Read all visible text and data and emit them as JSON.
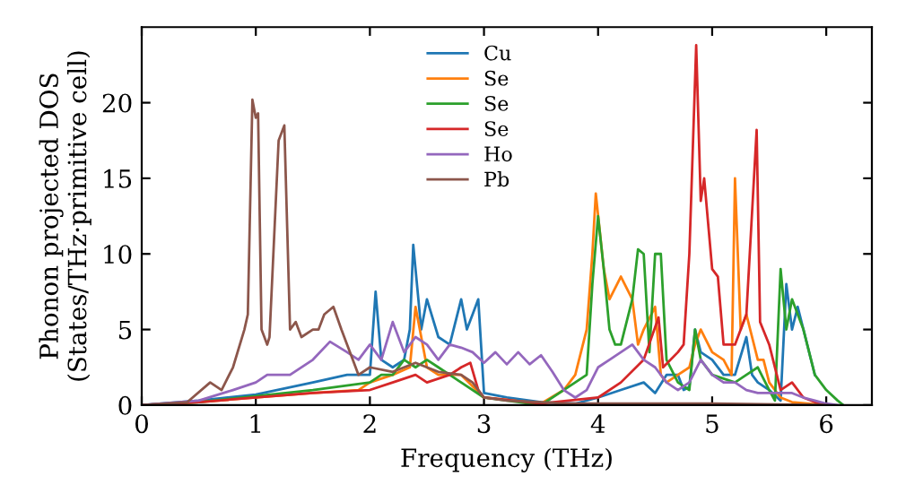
{
  "chart_data": {
    "type": "line",
    "xlabel": "Frequency (THz)",
    "ylabel": "Phonon projected DOS\n(States/THz·primitive cell)",
    "xlim": [
      0,
      6.4
    ],
    "ylim": [
      0,
      25
    ],
    "xticks": [
      0,
      1,
      2,
      3,
      4,
      5,
      6
    ],
    "yticks": [
      0,
      5,
      10,
      15,
      20
    ],
    "legend": "top",
    "grid": false,
    "marker": "none",
    "line_style": "solid",
    "series": [
      {
        "name": "Cu",
        "color": "#1f77b4",
        "x": [
          0,
          0.5,
          1.0,
          1.5,
          1.8,
          2.0,
          2.05,
          2.1,
          2.2,
          2.3,
          2.35,
          2.38,
          2.45,
          2.5,
          2.6,
          2.7,
          2.8,
          2.85,
          2.9,
          2.95,
          3.0,
          3.2,
          3.5,
          3.8,
          4.0,
          4.2,
          4.4,
          4.5,
          4.6,
          4.7,
          4.75,
          4.8,
          4.85,
          4.9,
          5.0,
          5.1,
          5.2,
          5.3,
          5.35,
          5.4,
          5.5,
          5.6,
          5.65,
          5.7,
          5.75,
          5.8,
          5.9
        ],
        "values": [
          0,
          0.3,
          0.7,
          1.5,
          2,
          2,
          7.5,
          3,
          2.5,
          3,
          5,
          10.6,
          5,
          7,
          4.5,
          4,
          7,
          5,
          6,
          7,
          0.8,
          0.5,
          0.2,
          0.1,
          0.5,
          1,
          1.5,
          0.8,
          2,
          2,
          1,
          1.2,
          5,
          3.5,
          3,
          2,
          2,
          4.5,
          2,
          1.5,
          1,
          0.3,
          8,
          5,
          6.5,
          5,
          2
        ]
      },
      {
        "name": "Se",
        "color": "#ff7f0e",
        "x": [
          0,
          0.5,
          1.0,
          1.5,
          1.9,
          2.0,
          2.2,
          2.35,
          2.4,
          2.5,
          2.6,
          2.8,
          3.0,
          3.5,
          3.7,
          3.8,
          3.9,
          3.95,
          3.98,
          4.05,
          4.1,
          4.2,
          4.3,
          4.35,
          4.4,
          4.5,
          4.55,
          4.6,
          4.7,
          4.8,
          4.85,
          4.9,
          5.0,
          5.1,
          5.17,
          5.2,
          5.25,
          5.3,
          5.4,
          5.45,
          5.5,
          5.6,
          5.7,
          6.0
        ],
        "values": [
          0,
          0.2,
          0.5,
          0.8,
          1,
          1.5,
          2,
          2.5,
          6.5,
          2.5,
          2,
          2,
          0.5,
          0.1,
          1,
          2,
          5,
          10,
          14,
          9,
          7,
          8.5,
          7,
          4,
          5,
          6.5,
          2,
          1.5,
          2,
          2.5,
          4,
          5,
          3.5,
          3,
          2,
          15,
          5,
          6,
          3,
          3,
          1.5,
          0.5,
          0.2,
          0
        ]
      },
      {
        "name": "Se",
        "color": "#2ca02c",
        "x": [
          0,
          0.5,
          1.0,
          1.5,
          2.0,
          2.1,
          2.2,
          2.3,
          2.4,
          2.5,
          2.6,
          2.8,
          3.0,
          3.5,
          3.9,
          3.95,
          4.0,
          4.05,
          4.1,
          4.15,
          4.2,
          4.3,
          4.35,
          4.4,
          4.45,
          4.5,
          4.55,
          4.6,
          4.7,
          4.8,
          4.85,
          4.9,
          5.0,
          5.2,
          5.3,
          5.4,
          5.5,
          5.55,
          5.6,
          5.65,
          5.7,
          5.8,
          5.9,
          6.0,
          6.1,
          6.15
        ],
        "values": [
          0,
          0.2,
          0.6,
          1,
          1.5,
          2,
          2,
          3,
          2.5,
          3,
          2.5,
          1.5,
          0.5,
          0,
          2,
          8,
          12.5,
          9,
          5,
          4,
          4,
          7,
          10.3,
          10,
          3.5,
          10,
          10,
          3,
          1.5,
          1,
          5,
          3,
          2,
          1.5,
          2,
          2.5,
          1,
          0.3,
          9,
          5,
          7,
          5,
          2,
          1,
          0.3,
          0
        ]
      },
      {
        "name": "Se",
        "color": "#d62728",
        "x": [
          0,
          0.5,
          1.0,
          1.5,
          2.0,
          2.2,
          2.4,
          2.5,
          2.7,
          2.8,
          2.88,
          2.95,
          3.0,
          3.5,
          4.0,
          4.2,
          4.4,
          4.53,
          4.57,
          4.7,
          4.75,
          4.8,
          4.86,
          4.9,
          4.93,
          5.0,
          5.05,
          5.1,
          5.2,
          5.3,
          5.39,
          5.42,
          5.5,
          5.6,
          5.7,
          5.8,
          5.9,
          6.0
        ],
        "values": [
          0,
          0.2,
          0.5,
          0.8,
          1,
          1.5,
          2,
          1.5,
          2,
          2.5,
          2.8,
          1,
          0.5,
          0.1,
          0.5,
          1.5,
          3,
          5.8,
          2.5,
          3.5,
          4,
          10,
          23.8,
          13.5,
          15,
          9,
          8.5,
          4,
          4,
          6,
          18.2,
          5.5,
          4,
          1,
          1.5,
          0.5,
          0.2,
          0
        ]
      },
      {
        "name": "Ho",
        "color": "#9467bd",
        "x": [
          0,
          0.5,
          0.8,
          1.0,
          1.1,
          1.3,
          1.5,
          1.65,
          1.8,
          1.9,
          2.0,
          2.1,
          2.2,
          2.3,
          2.4,
          2.5,
          2.6,
          2.7,
          2.8,
          2.9,
          3.0,
          3.1,
          3.2,
          3.3,
          3.4,
          3.5,
          3.6,
          3.7,
          3.8,
          3.9,
          4.0,
          4.1,
          4.2,
          4.3,
          4.4,
          4.5,
          4.6,
          4.7,
          4.8,
          4.9,
          5.0,
          5.1,
          5.2,
          5.3,
          5.4,
          5.5,
          5.6,
          5.7,
          5.8,
          5.9,
          6.0,
          6.1
        ],
        "values": [
          0,
          0.3,
          1,
          1.5,
          2,
          2,
          3,
          4.2,
          3.5,
          3,
          4,
          3,
          5.5,
          3.5,
          4.5,
          4,
          3,
          4,
          3.8,
          3.5,
          2.8,
          3.5,
          2.7,
          3.5,
          2.7,
          3.3,
          2.2,
          1,
          0.5,
          1,
          2.5,
          3,
          3.5,
          4,
          3,
          2.5,
          1.5,
          1,
          1.5,
          3,
          2,
          1.5,
          1.5,
          1,
          0.8,
          0.8,
          0.8,
          0.8,
          0.5,
          0.3,
          0.1,
          0
        ]
      },
      {
        "name": "Pb",
        "color": "#8c564b",
        "x": [
          0,
          0.4,
          0.6,
          0.7,
          0.8,
          0.9,
          0.93,
          0.97,
          1.0,
          1.02,
          1.05,
          1.1,
          1.12,
          1.2,
          1.25,
          1.3,
          1.35,
          1.4,
          1.5,
          1.55,
          1.6,
          1.68,
          1.75,
          1.85,
          1.9,
          2.0,
          2.2,
          2.4,
          2.6,
          2.8,
          2.9,
          3.0,
          3.2,
          3.5,
          3.7,
          4.0,
          5.0,
          6.0
        ],
        "values": [
          0,
          0.2,
          1.5,
          1,
          2.5,
          5,
          6,
          20.2,
          19,
          19.3,
          5,
          4,
          4.5,
          17.5,
          18.5,
          5,
          5.5,
          4.5,
          5,
          5,
          6,
          6.5,
          5,
          3,
          2,
          2.5,
          2.2,
          2.8,
          2.2,
          2,
          1.5,
          0.5,
          0.3,
          0.2,
          0.1,
          0.1,
          0.1,
          0
        ]
      }
    ]
  }
}
